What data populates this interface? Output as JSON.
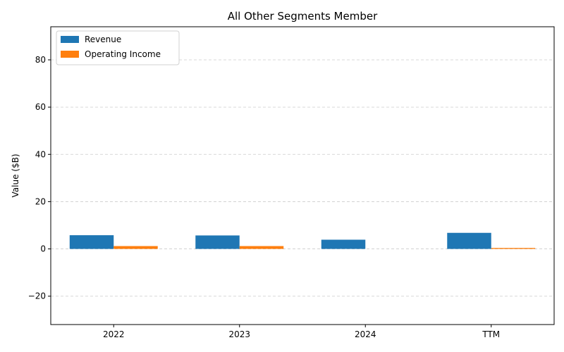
{
  "chart_data": {
    "type": "bar",
    "title": "All Other Segments Member",
    "xlabel": "",
    "ylabel": "Value ($B)",
    "categories": [
      "2022",
      "2023",
      "2024",
      "TTM"
    ],
    "series": [
      {
        "name": "Revenue",
        "color": "#1f77b4",
        "values": [
          5.8,
          5.7,
          3.9,
          6.8
        ]
      },
      {
        "name": "Operating Income",
        "color": "#ff7f0e",
        "values": [
          1.2,
          1.2,
          0.0,
          0.4
        ]
      }
    ],
    "ylim": [
      -32,
      94
    ],
    "yticks": [
      -20,
      0,
      20,
      40,
      60,
      80
    ],
    "grid": "y-dashed",
    "legend": "top-left"
  }
}
